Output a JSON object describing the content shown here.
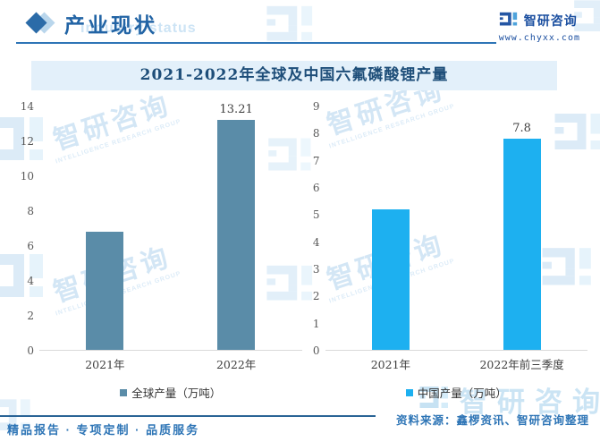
{
  "header": {
    "section_title": "产业现状",
    "ghost_text": "Industry status",
    "brand_name": "智研咨询",
    "brand_url": "www.chyxx.com"
  },
  "chart_title": "2021-2022年全球及中国六氟磷酸锂产量",
  "chart_data": [
    {
      "type": "bar",
      "series_name": "全球产量（万吨）",
      "categories": [
        "2021年",
        "2022年"
      ],
      "values": [
        6.8,
        13.21
      ],
      "bar_labels": [
        "",
        "13.21"
      ],
      "color": "#5a8ca8",
      "ylim": [
        0,
        14
      ],
      "ytick_step": 2,
      "grid": false,
      "legend_position": "bottom"
    },
    {
      "type": "bar",
      "series_name": "中国产量（万吨）",
      "categories": [
        "2021年",
        "2022年前三季度"
      ],
      "values": [
        5.2,
        7.8
      ],
      "bar_labels": [
        "",
        "7.8"
      ],
      "color": "#1db0f0",
      "ylim": [
        0,
        9
      ],
      "ytick_step": 1,
      "grid": false,
      "legend_position": "bottom"
    }
  ],
  "source_note": "资料来源：鑫椤资讯、智研咨询整理",
  "footer": {
    "services": "精品报告 · 专项定制 · 品质服务"
  },
  "watermark": {
    "brand": "智研咨询",
    "brand_en": "INTELLIGENCE RESEARCH GROUP"
  },
  "colors": {
    "accent": "#2e75b6",
    "global_bar": "#5a8ca8",
    "china_bar": "#1db0f0",
    "title_band_bg": "#e3f0fa"
  }
}
